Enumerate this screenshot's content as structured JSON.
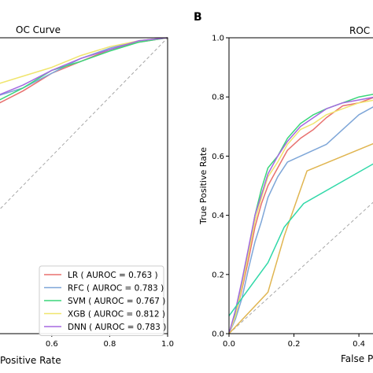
{
  "panels": {
    "b": {
      "letter": "B"
    }
  },
  "chart_data": [
    {
      "type": "line",
      "title": "OC Curve",
      "xlabel": "Positive Rate",
      "ylabel": "",
      "xlim": [
        0.25,
        1.0
      ],
      "ylim": [
        0.0,
        1.0
      ],
      "xticks": [
        "0.6",
        "0.8",
        "1.0"
      ],
      "grid": false,
      "legend_position": "bottom-right",
      "diagonal_reference": true,
      "series": [
        {
          "name": "LR ( AUROC = 0.763 )",
          "color": "#e8716f",
          "x": [
            0.25,
            0.3,
            0.4,
            0.5,
            0.6,
            0.7,
            0.8,
            0.9,
            1.0
          ],
          "y": [
            0.7,
            0.73,
            0.77,
            0.82,
            0.88,
            0.92,
            0.96,
            0.985,
            1.0
          ]
        },
        {
          "name": "RFC ( AUROC = 0.783 )",
          "color": "#7ea6d8",
          "x": [
            0.25,
            0.3,
            0.4,
            0.5,
            0.6,
            0.7,
            0.8,
            0.9,
            1.0
          ],
          "y": [
            0.71,
            0.745,
            0.8,
            0.83,
            0.88,
            0.93,
            0.965,
            0.99,
            1.0
          ]
        },
        {
          "name": "SVM ( AUROC = 0.767 )",
          "color": "#3ad67a",
          "x": [
            0.25,
            0.3,
            0.4,
            0.5,
            0.6,
            0.7,
            0.8,
            0.9,
            1.0
          ],
          "y": [
            0.71,
            0.74,
            0.78,
            0.83,
            0.89,
            0.92,
            0.955,
            0.985,
            1.0
          ]
        },
        {
          "name": "XGB ( AUROC = 0.812 )",
          "color": "#f0e56e",
          "x": [
            0.25,
            0.3,
            0.4,
            0.5,
            0.6,
            0.7,
            0.8,
            0.9,
            1.0
          ],
          "y": [
            0.75,
            0.79,
            0.84,
            0.87,
            0.9,
            0.94,
            0.97,
            0.99,
            1.0
          ]
        },
        {
          "name": "DNN ( AUROC = 0.783 )",
          "color": "#a569e0",
          "x": [
            0.25,
            0.3,
            0.4,
            0.5,
            0.6,
            0.7,
            0.8,
            0.9,
            1.0
          ],
          "y": [
            0.72,
            0.75,
            0.8,
            0.84,
            0.89,
            0.93,
            0.96,
            0.99,
            1.0
          ]
        }
      ]
    },
    {
      "type": "line",
      "title": "ROC",
      "xlabel": "False Po",
      "ylabel": "True Positive Rate",
      "xlim": [
        0.0,
        0.55
      ],
      "ylim": [
        0.0,
        1.0
      ],
      "xticks": [
        "0.0",
        "0.2",
        "0.4"
      ],
      "yticks": [
        "0.0",
        "0.2",
        "0.4",
        "0.6",
        "0.8",
        "1.0"
      ],
      "grid": false,
      "diagonal_reference": true,
      "series": [
        {
          "color": "#e8716f",
          "x": [
            0.0,
            0.02,
            0.04,
            0.06,
            0.08,
            0.1,
            0.12,
            0.15,
            0.18,
            0.22,
            0.26,
            0.3,
            0.35,
            0.4,
            0.45,
            0.5,
            0.55
          ],
          "y": [
            0.0,
            0.06,
            0.15,
            0.25,
            0.36,
            0.44,
            0.5,
            0.56,
            0.62,
            0.66,
            0.69,
            0.73,
            0.77,
            0.78,
            0.8,
            0.82,
            0.84
          ]
        },
        {
          "color": "#7ea6d8",
          "x": [
            0.0,
            0.02,
            0.04,
            0.06,
            0.08,
            0.1,
            0.12,
            0.15,
            0.18,
            0.22,
            0.26,
            0.3,
            0.35,
            0.4,
            0.45,
            0.5,
            0.55
          ],
          "y": [
            0.0,
            0.05,
            0.12,
            0.22,
            0.31,
            0.38,
            0.46,
            0.53,
            0.58,
            0.6,
            0.62,
            0.64,
            0.69,
            0.74,
            0.77,
            0.8,
            0.83
          ]
        },
        {
          "color": "#3ad67a",
          "x": [
            0.0,
            0.02,
            0.04,
            0.06,
            0.08,
            0.1,
            0.12,
            0.15,
            0.18,
            0.22,
            0.26,
            0.3,
            0.35,
            0.4,
            0.45,
            0.5,
            0.55
          ],
          "y": [
            0.0,
            0.07,
            0.17,
            0.28,
            0.4,
            0.49,
            0.56,
            0.6,
            0.66,
            0.71,
            0.74,
            0.76,
            0.78,
            0.8,
            0.81,
            0.82,
            0.83
          ]
        },
        {
          "color": "#f0e56e",
          "x": [
            0.0,
            0.02,
            0.04,
            0.06,
            0.08,
            0.1,
            0.12,
            0.15,
            0.18,
            0.22,
            0.26,
            0.3,
            0.35,
            0.4,
            0.45,
            0.5,
            0.55
          ],
          "y": [
            0.0,
            0.06,
            0.16,
            0.27,
            0.38,
            0.46,
            0.53,
            0.58,
            0.64,
            0.69,
            0.71,
            0.74,
            0.76,
            0.78,
            0.79,
            0.81,
            0.82
          ]
        },
        {
          "color": "#a569e0",
          "x": [
            0.0,
            0.02,
            0.04,
            0.06,
            0.08,
            0.1,
            0.12,
            0.15,
            0.18,
            0.22,
            0.26,
            0.3,
            0.35,
            0.4,
            0.45,
            0.5,
            0.55
          ],
          "y": [
            0.0,
            0.08,
            0.18,
            0.29,
            0.4,
            0.47,
            0.54,
            0.6,
            0.65,
            0.7,
            0.73,
            0.76,
            0.78,
            0.79,
            0.8,
            0.81,
            0.83
          ]
        },
        {
          "color": "#e0b550",
          "x": [
            0.0,
            0.12,
            0.17,
            0.24,
            0.55
          ],
          "y": [
            0.0,
            0.14,
            0.33,
            0.55,
            0.69
          ]
        },
        {
          "color": "#30d8a8",
          "x": [
            0.0,
            0.12,
            0.17,
            0.23,
            0.55
          ],
          "y": [
            0.06,
            0.24,
            0.36,
            0.44,
            0.64
          ]
        }
      ]
    }
  ]
}
